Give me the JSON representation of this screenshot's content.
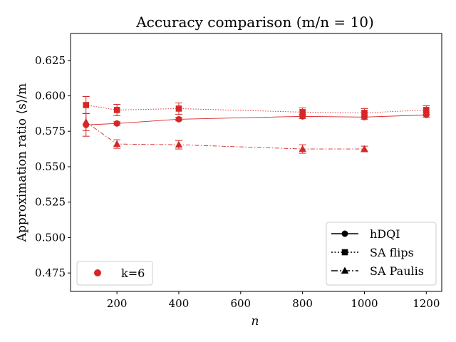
{
  "chart_data": {
    "type": "line",
    "title": "Accuracy comparison (m/n = 10)",
    "xlabel": "n",
    "ylabel": "Approximation ratio ⟨s⟩/m",
    "xlim": [
      50,
      1250
    ],
    "ylim": [
      0.462,
      0.644
    ],
    "xticks": [
      200,
      400,
      600,
      800,
      1000,
      1200
    ],
    "yticks": [
      0.475,
      0.5,
      0.525,
      0.55,
      0.575,
      0.6,
      0.625
    ],
    "grid": false,
    "color": "#d62728",
    "series": [
      {
        "name": "hDQI",
        "linestyle": "solid",
        "marker": "circle",
        "x": [
          100,
          200,
          400,
          800,
          1000,
          1200
        ],
        "y": [
          0.5795,
          0.5805,
          0.5835,
          0.5855,
          0.585,
          0.5865
        ],
        "err": [
          0.008,
          0.0012,
          0.0012,
          0.0015,
          0.0015,
          0.0015
        ]
      },
      {
        "name": "SA flips",
        "linestyle": "dotted",
        "marker": "square",
        "x": [
          100,
          200,
          400,
          800,
          1000,
          1200
        ],
        "y": [
          0.5935,
          0.59,
          0.591,
          0.5885,
          0.588,
          0.59
        ],
        "err": [
          0.006,
          0.004,
          0.004,
          0.003,
          0.003,
          0.003
        ]
      },
      {
        "name": "SA Paulis",
        "linestyle": "dashdot",
        "marker": "triangle",
        "x": [
          100,
          200,
          400,
          800,
          1000
        ],
        "y": [
          0.5815,
          0.566,
          0.5655,
          0.5625,
          0.5625
        ],
        "err": [
          0.006,
          0.003,
          0.003,
          0.003,
          0.002
        ]
      }
    ],
    "legend_style": {
      "placement": "lower right",
      "entries": [
        "hDQI",
        "SA flips",
        "SA Paulis"
      ]
    },
    "legend_color": {
      "placement": "lower left",
      "entries": [
        "k=6"
      ]
    }
  }
}
